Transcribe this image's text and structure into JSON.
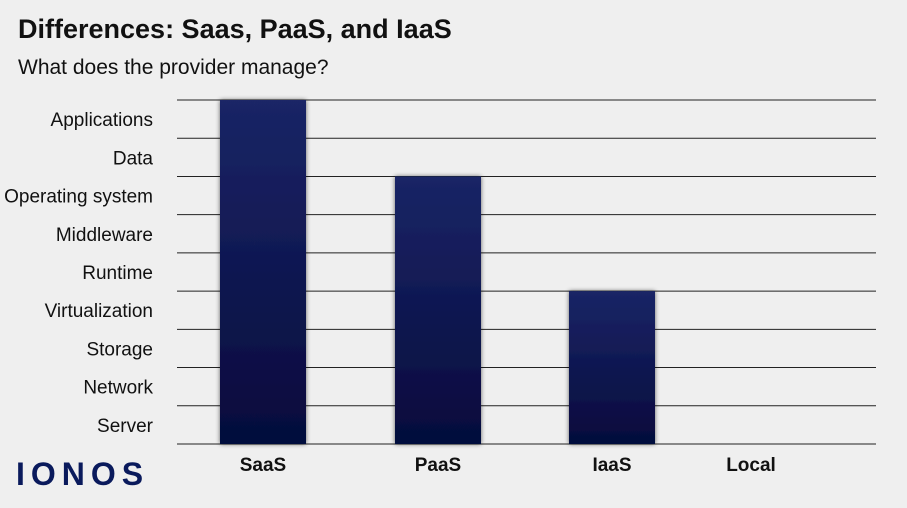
{
  "header": {
    "title": "Differences: Saas, PaaS, and IaaS",
    "subtitle": "What does the provider manage?"
  },
  "brand": {
    "logo_text": "IONOS"
  },
  "colors": {
    "bar": "#0d1650",
    "grid": "#222222",
    "background": "#efefef"
  },
  "chart_data": {
    "type": "bar",
    "title": "Differences: Saas, PaaS, and IaaS",
    "subtitle": "What does the provider manage?",
    "categories": [
      "SaaS",
      "PaaS",
      "IaaS",
      "Local"
    ],
    "values": [
      9,
      7,
      4,
      0
    ],
    "ytick_labels": [
      "Server",
      "Network",
      "Storage",
      "Virtualization",
      "Runtime",
      "Middleware",
      "Operating system",
      "Data",
      "Applications"
    ],
    "ylim": [
      0,
      9
    ],
    "grid": true,
    "legend": "none"
  }
}
